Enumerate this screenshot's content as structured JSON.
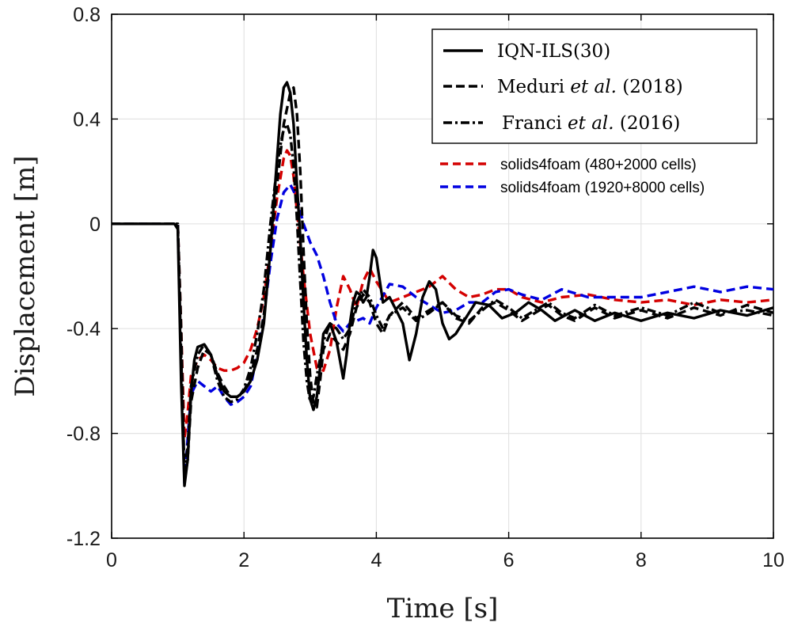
{
  "chart_data": {
    "type": "line",
    "title": "",
    "xlabel": "Time [s]",
    "ylabel": "Displacement [m]",
    "xlim": [
      0,
      10
    ],
    "ylim": [
      -1.2,
      0.8
    ],
    "xticks": [
      0,
      2,
      4,
      6,
      8,
      10
    ],
    "yticks": [
      0.8,
      0.4,
      0,
      -0.4,
      -0.8,
      -1.2
    ],
    "xtick_labels": [
      "0",
      "2",
      "4",
      "6",
      "8",
      "10"
    ],
    "ytick_labels": [
      "0.8",
      "0.4",
      "0",
      "-0.4",
      "-0.8",
      "-1.2"
    ],
    "grid": true,
    "legend_position": "top-right",
    "legend_boxed": [
      {
        "prefix": "IQN-ILS(30)",
        "italic": "",
        "suffix": ""
      },
      {
        "prefix": "Meduri ",
        "italic": "et al.",
        "suffix": " (2018)"
      },
      {
        "prefix": "Franci ",
        "italic": "et al.",
        "suffix": " (2016)"
      }
    ],
    "series": [
      {
        "name": "IQN-ILS(30)",
        "color": "#000000",
        "dash": "solid",
        "x": [
          0,
          0.5,
          0.95,
          1.0,
          1.05,
          1.1,
          1.15,
          1.2,
          1.25,
          1.3,
          1.4,
          1.5,
          1.6,
          1.7,
          1.8,
          1.9,
          2.0,
          2.1,
          2.2,
          2.3,
          2.4,
          2.5,
          2.55,
          2.6,
          2.65,
          2.7,
          2.75,
          2.8,
          2.85,
          2.9,
          2.95,
          3.0,
          3.05,
          3.1,
          3.15,
          3.2,
          3.3,
          3.4,
          3.5,
          3.55,
          3.6,
          3.65,
          3.7,
          3.75,
          3.8,
          3.85,
          3.9,
          3.95,
          4.0,
          4.1,
          4.2,
          4.3,
          4.4,
          4.5,
          4.6,
          4.7,
          4.8,
          4.9,
          5.0,
          5.1,
          5.2,
          5.3,
          5.5,
          5.7,
          5.9,
          6.1,
          6.3,
          6.5,
          6.7,
          7.0,
          7.3,
          7.6,
          8.0,
          8.4,
          8.8,
          9.2,
          9.6,
          10.0
        ],
        "y": [
          0.0,
          0.0,
          0.0,
          -0.02,
          -0.6,
          -1.0,
          -0.9,
          -0.65,
          -0.52,
          -0.47,
          -0.46,
          -0.5,
          -0.58,
          -0.64,
          -0.66,
          -0.66,
          -0.64,
          -0.6,
          -0.52,
          -0.38,
          -0.1,
          0.25,
          0.42,
          0.52,
          0.54,
          0.5,
          0.38,
          0.15,
          -0.05,
          -0.3,
          -0.52,
          -0.67,
          -0.71,
          -0.66,
          -0.55,
          -0.42,
          -0.38,
          -0.45,
          -0.59,
          -0.5,
          -0.38,
          -0.3,
          -0.26,
          -0.27,
          -0.3,
          -0.28,
          -0.2,
          -0.1,
          -0.13,
          -0.3,
          -0.28,
          -0.33,
          -0.38,
          -0.52,
          -0.42,
          -0.28,
          -0.22,
          -0.25,
          -0.38,
          -0.44,
          -0.42,
          -0.38,
          -0.3,
          -0.31,
          -0.36,
          -0.34,
          -0.3,
          -0.33,
          -0.37,
          -0.33,
          -0.37,
          -0.34,
          -0.37,
          -0.34,
          -0.36,
          -0.33,
          -0.35,
          -0.32
        ]
      },
      {
        "name": "Meduri et al. (2018)",
        "color": "#000000",
        "dash": "dashed",
        "x": [
          0,
          0.5,
          1.0,
          1.05,
          1.1,
          1.15,
          1.2,
          1.3,
          1.4,
          1.5,
          1.6,
          1.7,
          1.8,
          1.9,
          2.0,
          2.1,
          2.2,
          2.3,
          2.4,
          2.5,
          2.6,
          2.7,
          2.75,
          2.8,
          2.85,
          2.9,
          2.95,
          3.0,
          3.05,
          3.1,
          3.15,
          3.2,
          3.3,
          3.4,
          3.5,
          3.6,
          3.7,
          3.8,
          3.9,
          4.0,
          4.1,
          4.2,
          4.4,
          4.6,
          4.8,
          5.0,
          5.2,
          5.4,
          5.6,
          5.8,
          6.0,
          6.2,
          6.4,
          6.6,
          6.8,
          7.0,
          7.3,
          7.6,
          8.0,
          8.4,
          8.8,
          9.2,
          9.6,
          10.0
        ],
        "y": [
          0.0,
          0.0,
          0.0,
          -0.4,
          -0.98,
          -0.9,
          -0.68,
          -0.55,
          -0.48,
          -0.5,
          -0.57,
          -0.62,
          -0.66,
          -0.66,
          -0.64,
          -0.58,
          -0.48,
          -0.35,
          -0.1,
          0.15,
          0.38,
          0.5,
          0.52,
          0.42,
          0.2,
          -0.1,
          -0.38,
          -0.58,
          -0.69,
          -0.7,
          -0.6,
          -0.48,
          -0.42,
          -0.45,
          -0.48,
          -0.42,
          -0.32,
          -0.27,
          -0.3,
          -0.38,
          -0.42,
          -0.35,
          -0.3,
          -0.36,
          -0.33,
          -0.3,
          -0.36,
          -0.38,
          -0.32,
          -0.3,
          -0.33,
          -0.37,
          -0.34,
          -0.31,
          -0.35,
          -0.37,
          -0.32,
          -0.36,
          -0.33,
          -0.36,
          -0.32,
          -0.35,
          -0.31,
          -0.34
        ]
      },
      {
        "name": "Franci et al. (2016)",
        "color": "#000000",
        "dash": "dashdot",
        "x": [
          0,
          0.5,
          1.0,
          1.05,
          1.1,
          1.15,
          1.2,
          1.3,
          1.4,
          1.5,
          1.6,
          1.7,
          1.8,
          1.9,
          2.0,
          2.1,
          2.2,
          2.3,
          2.4,
          2.5,
          2.55,
          2.6,
          2.65,
          2.7,
          2.75,
          2.8,
          2.85,
          2.9,
          2.95,
          3.0,
          3.05,
          3.1,
          3.2,
          3.3,
          3.4,
          3.5,
          3.6,
          3.7,
          3.8,
          3.9,
          4.0,
          4.1,
          4.2,
          4.4,
          4.6,
          4.8,
          5.0,
          5.2,
          5.4,
          5.6,
          5.8,
          6.0,
          6.2,
          6.4,
          6.6,
          6.8,
          7.0,
          7.3,
          7.6,
          8.0,
          8.4,
          8.8,
          9.2,
          9.6,
          10.0
        ],
        "y": [
          0.0,
          0.0,
          0.0,
          -0.5,
          -0.95,
          -0.85,
          -0.62,
          -0.5,
          -0.46,
          -0.5,
          -0.6,
          -0.66,
          -0.68,
          -0.67,
          -0.63,
          -0.55,
          -0.42,
          -0.25,
          0.0,
          0.22,
          0.3,
          0.36,
          0.38,
          0.34,
          0.22,
          0.02,
          -0.22,
          -0.45,
          -0.6,
          -0.68,
          -0.66,
          -0.58,
          -0.45,
          -0.38,
          -0.4,
          -0.44,
          -0.4,
          -0.3,
          -0.25,
          -0.28,
          -0.35,
          -0.4,
          -0.35,
          -0.32,
          -0.37,
          -0.34,
          -0.3,
          -0.35,
          -0.37,
          -0.33,
          -0.29,
          -0.32,
          -0.36,
          -0.33,
          -0.3,
          -0.34,
          -0.36,
          -0.31,
          -0.35,
          -0.32,
          -0.35,
          -0.3,
          -0.34,
          -0.33,
          -0.35
        ]
      },
      {
        "name": "solids4foam (480+2000 cells)",
        "color": "#d40000",
        "dash": "dashed",
        "x": [
          0,
          0.5,
          1.0,
          1.05,
          1.1,
          1.15,
          1.2,
          1.3,
          1.4,
          1.5,
          1.6,
          1.7,
          1.8,
          1.9,
          2.0,
          2.1,
          2.2,
          2.3,
          2.4,
          2.5,
          2.6,
          2.65,
          2.7,
          2.75,
          2.8,
          2.9,
          3.0,
          3.1,
          3.2,
          3.3,
          3.4,
          3.5,
          3.6,
          3.7,
          3.8,
          3.9,
          4.0,
          4.2,
          4.4,
          4.6,
          4.8,
          5.0,
          5.2,
          5.4,
          5.6,
          5.8,
          6.0,
          6.2,
          6.5,
          6.8,
          7.2,
          7.6,
          8.0,
          8.4,
          8.8,
          9.2,
          9.6,
          10.0
        ],
        "y": [
          0.0,
          0.0,
          0.0,
          -0.4,
          -0.82,
          -0.72,
          -0.58,
          -0.52,
          -0.5,
          -0.52,
          -0.55,
          -0.56,
          -0.56,
          -0.55,
          -0.53,
          -0.48,
          -0.4,
          -0.28,
          -0.1,
          0.1,
          0.25,
          0.28,
          0.26,
          0.18,
          0.05,
          -0.2,
          -0.42,
          -0.55,
          -0.56,
          -0.48,
          -0.32,
          -0.2,
          -0.25,
          -0.32,
          -0.22,
          -0.17,
          -0.22,
          -0.3,
          -0.28,
          -0.26,
          -0.24,
          -0.2,
          -0.25,
          -0.28,
          -0.27,
          -0.25,
          -0.25,
          -0.28,
          -0.3,
          -0.28,
          -0.27,
          -0.29,
          -0.3,
          -0.29,
          -0.31,
          -0.29,
          -0.3,
          -0.29
        ]
      },
      {
        "name": "solids4foam (1920+8000 cells)",
        "color": "#0000e0",
        "dash": "dashed",
        "x": [
          0,
          0.5,
          1.0,
          1.05,
          1.1,
          1.15,
          1.2,
          1.3,
          1.4,
          1.5,
          1.6,
          1.7,
          1.8,
          1.9,
          2.0,
          2.1,
          2.2,
          2.3,
          2.4,
          2.5,
          2.6,
          2.7,
          2.8,
          2.9,
          3.0,
          3.1,
          3.2,
          3.3,
          3.4,
          3.5,
          3.6,
          3.7,
          3.8,
          3.9,
          4.0,
          4.2,
          4.4,
          4.6,
          4.8,
          5.0,
          5.2,
          5.4,
          5.6,
          5.8,
          6.0,
          6.2,
          6.5,
          6.8,
          7.2,
          7.6,
          8.0,
          8.4,
          8.8,
          9.2,
          9.6,
          10.0
        ],
        "y": [
          0.0,
          0.0,
          0.0,
          -0.45,
          -0.99,
          -0.82,
          -0.65,
          -0.6,
          -0.62,
          -0.64,
          -0.62,
          -0.66,
          -0.69,
          -0.68,
          -0.66,
          -0.62,
          -0.5,
          -0.35,
          -0.15,
          0.02,
          0.12,
          0.15,
          0.1,
          0.0,
          -0.07,
          -0.12,
          -0.2,
          -0.3,
          -0.38,
          -0.41,
          -0.38,
          -0.37,
          -0.36,
          -0.38,
          -0.32,
          -0.23,
          -0.24,
          -0.28,
          -0.31,
          -0.34,
          -0.33,
          -0.3,
          -0.3,
          -0.26,
          -0.25,
          -0.27,
          -0.29,
          -0.25,
          -0.28,
          -0.28,
          -0.28,
          -0.26,
          -0.24,
          -0.26,
          -0.24,
          -0.25
        ]
      }
    ]
  }
}
